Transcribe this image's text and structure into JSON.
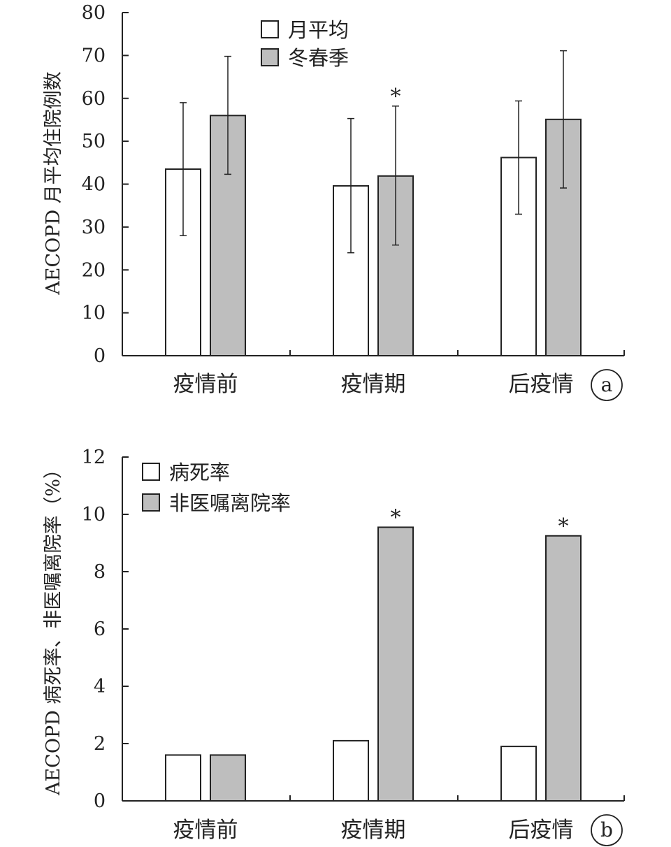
{
  "chart_data": [
    {
      "type": "bar",
      "panel_label": "a",
      "ylabel": "AECOPD 月平均住院例数",
      "ylim": [
        0,
        80
      ],
      "yticks": [
        0,
        10,
        20,
        30,
        40,
        50,
        60,
        70,
        80
      ],
      "categories": [
        "疫情前",
        "疫情期",
        "后疫情"
      ],
      "legend_position": "top-center",
      "series": [
        {
          "name": "月平均",
          "color": "#ffffff",
          "values": [
            43.5,
            39.6,
            46.2
          ],
          "err_low": [
            28.0,
            24.0,
            33.0
          ],
          "err_high": [
            59.0,
            55.3,
            59.4
          ]
        },
        {
          "name": "冬春季",
          "color": "#bebebe",
          "values": [
            56.0,
            41.9,
            55.1
          ],
          "err_low": [
            42.3,
            25.8,
            39.1
          ],
          "err_high": [
            69.8,
            58.2,
            71.1
          ]
        }
      ],
      "annotations": [
        {
          "series": 1,
          "category": 1,
          "text": "*"
        }
      ]
    },
    {
      "type": "bar",
      "panel_label": "b",
      "ylabel": "AECOPD 病死率、非医嘱离院率（%）",
      "ylim": [
        0,
        12
      ],
      "yticks": [
        0,
        2,
        4,
        6,
        8,
        10,
        12
      ],
      "categories": [
        "疫情前",
        "疫情期",
        "后疫情"
      ],
      "legend_position": "top-left",
      "series": [
        {
          "name": "病死率",
          "color": "#ffffff",
          "values": [
            1.6,
            2.1,
            1.9
          ]
        },
        {
          "name": "非医嘱离院率",
          "color": "#bebebe",
          "values": [
            1.6,
            9.55,
            9.25
          ]
        }
      ],
      "annotations": [
        {
          "series": 1,
          "category": 1,
          "text": "*"
        },
        {
          "series": 1,
          "category": 2,
          "text": "*"
        }
      ]
    }
  ]
}
